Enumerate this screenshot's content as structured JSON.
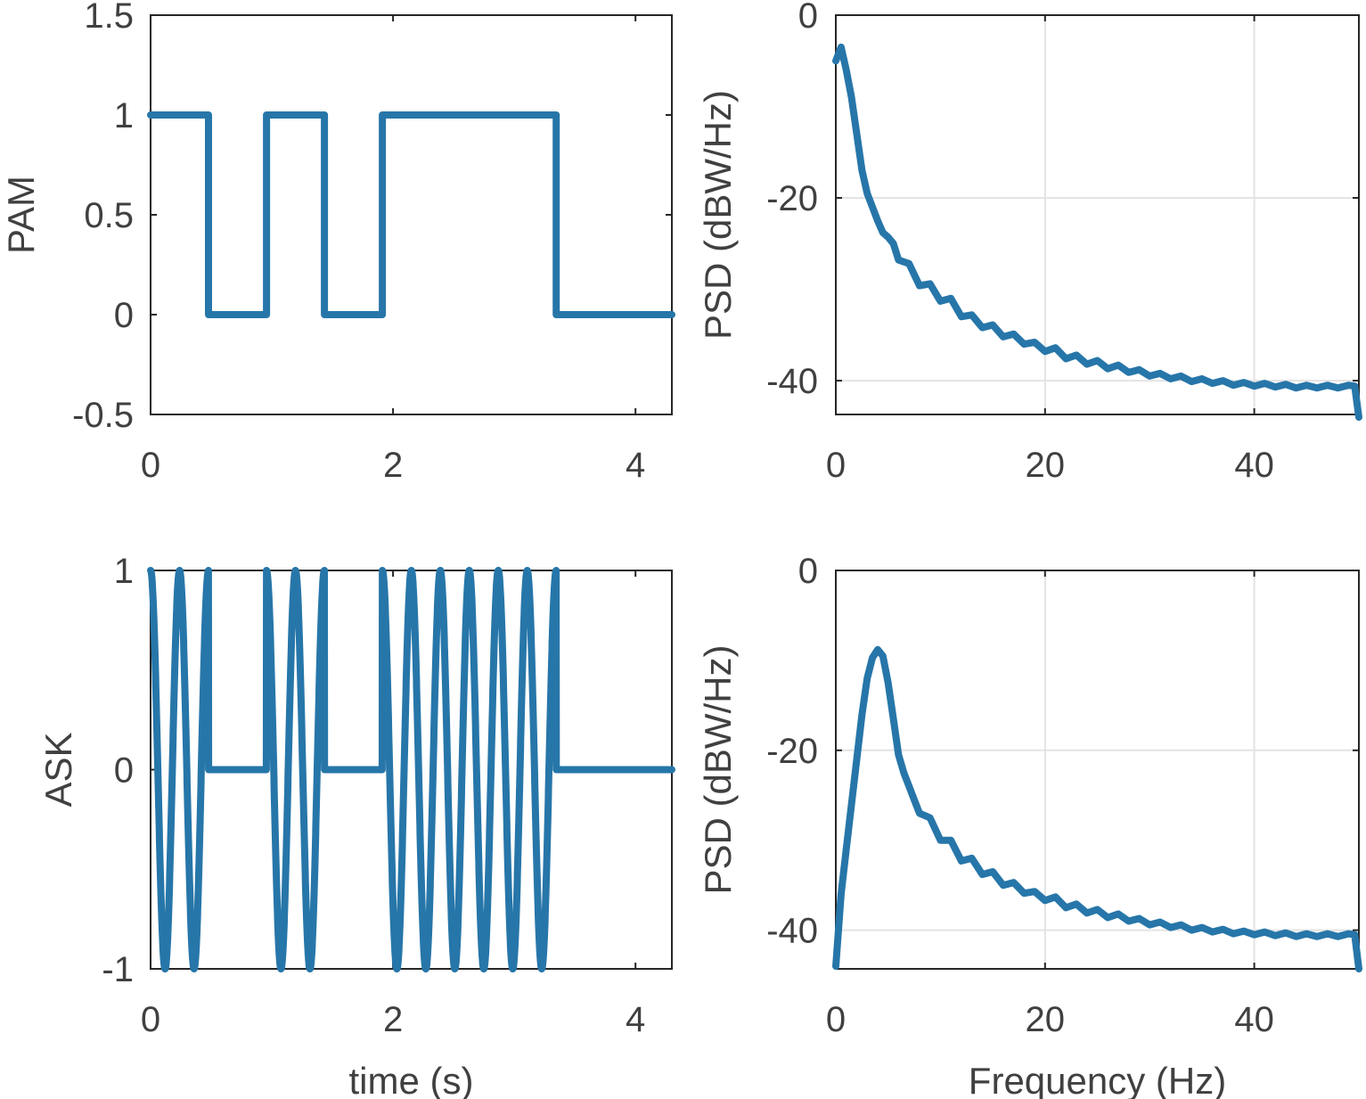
{
  "chart_data": [
    {
      "id": "pam",
      "type": "line",
      "title": "",
      "xlabel": "",
      "ylabel": "PAM",
      "xlim": [
        0,
        4.3
      ],
      "ylim": [
        -0.5,
        1.5
      ],
      "xticks": [
        0,
        2,
        4
      ],
      "xtick_labels": [
        "0",
        "2",
        "4"
      ],
      "yticks": [
        -0.5,
        0,
        0.5,
        1,
        1.5
      ],
      "ytick_labels": [
        "-0.5",
        "0",
        "0.5",
        "1",
        "1.5"
      ],
      "grid": false,
      "bits": [
        1,
        0,
        1,
        0,
        1,
        1,
        1,
        0,
        0
      ],
      "symbol_duration": 0.478,
      "color": "#2776a9"
    },
    {
      "id": "pam-psd",
      "type": "line",
      "xlabel": "",
      "ylabel": "PSD (dBW/Hz)",
      "xlim": [
        0,
        50
      ],
      "ylim": [
        -43.7,
        0
      ],
      "xticks": [
        0,
        20,
        40
      ],
      "xtick_labels": [
        "0",
        "20",
        "40"
      ],
      "yticks": [
        -40,
        -20,
        0
      ],
      "ytick_labels": [
        "-40",
        "-20",
        "0"
      ],
      "grid": true,
      "x": [
        0,
        0.5,
        1,
        1.5,
        2,
        2.5,
        3,
        3.5,
        4,
        4.5,
        5,
        5.5,
        6,
        7,
        8,
        9,
        10,
        11,
        12,
        13,
        14,
        15,
        16,
        17,
        18,
        19,
        20,
        21,
        22,
        23,
        24,
        25,
        26,
        27,
        28,
        29,
        30,
        31,
        32,
        33,
        34,
        35,
        36,
        37,
        38,
        39,
        40,
        41,
        42,
        43,
        44,
        45,
        46,
        47,
        48,
        49,
        49.6,
        50
      ],
      "y": [
        -5,
        -3.5,
        -6,
        -9,
        -13,
        -17,
        -19.5,
        -21,
        -22.5,
        -23.8,
        -24.3,
        -25,
        -26.8,
        -27.2,
        -29.6,
        -29.4,
        -31.3,
        -31,
        -33,
        -32.8,
        -34.2,
        -33.9,
        -35.2,
        -34.9,
        -36,
        -35.8,
        -36.8,
        -36.4,
        -37.6,
        -37.2,
        -38.2,
        -37.8,
        -38.7,
        -38.3,
        -39.1,
        -38.8,
        -39.5,
        -39.2,
        -39.8,
        -39.5,
        -40.1,
        -39.8,
        -40.3,
        -40,
        -40.5,
        -40.2,
        -40.6,
        -40.3,
        -40.7,
        -40.4,
        -40.8,
        -40.5,
        -40.8,
        -40.5,
        -40.8,
        -40.5,
        -40.6,
        -44
      ],
      "color": "#2776a9"
    },
    {
      "id": "ask",
      "type": "line",
      "xlabel": "time (s)",
      "ylabel": "ASK",
      "xlim": [
        0,
        4.3
      ],
      "ylim": [
        -1,
        1
      ],
      "xticks": [
        0,
        2,
        4
      ],
      "xtick_labels": [
        "0",
        "2",
        "4"
      ],
      "yticks": [
        -1,
        0,
        1
      ],
      "ytick_labels": [
        "-1",
        "0",
        "1"
      ],
      "grid": false,
      "bits": [
        1,
        0,
        1,
        0,
        1,
        1,
        1,
        0,
        0
      ],
      "symbol_duration": 0.478,
      "carrier_cycles_per_symbol": 2,
      "color": "#2776a9"
    },
    {
      "id": "ask-psd",
      "type": "line",
      "xlabel": "Frequency (Hz)",
      "ylabel": "PSD (dBW/Hz)",
      "xlim": [
        0,
        50
      ],
      "ylim": [
        -44.3,
        0
      ],
      "xticks": [
        0,
        20,
        40
      ],
      "xtick_labels": [
        "0",
        "20",
        "40"
      ],
      "yticks": [
        -40,
        -20,
        0
      ],
      "ytick_labels": [
        "-40",
        "-20",
        "0"
      ],
      "grid": true,
      "x": [
        0,
        0.5,
        1,
        1.5,
        2,
        2.5,
        3,
        3.5,
        4,
        4.5,
        5,
        5.5,
        6,
        6.5,
        7,
        7.5,
        8,
        9,
        10,
        11,
        12,
        13,
        14,
        15,
        16,
        17,
        18,
        19,
        20,
        21,
        22,
        23,
        24,
        25,
        26,
        27,
        28,
        29,
        30,
        31,
        32,
        33,
        34,
        35,
        36,
        37,
        38,
        39,
        40,
        41,
        42,
        43,
        44,
        45,
        46,
        47,
        48,
        49,
        49.6,
        50
      ],
      "y": [
        -44,
        -36,
        -31,
        -26,
        -21,
        -16,
        -12,
        -9.7,
        -8.8,
        -9.5,
        -12.5,
        -16.5,
        -20.5,
        -22.5,
        -24,
        -25.5,
        -27,
        -27.5,
        -30,
        -30,
        -32.3,
        -32,
        -33.8,
        -33.5,
        -35,
        -34.7,
        -35.9,
        -35.7,
        -36.7,
        -36.3,
        -37.5,
        -37.1,
        -38.1,
        -37.7,
        -38.6,
        -38.2,
        -39,
        -38.7,
        -39.4,
        -39.1,
        -39.7,
        -39.4,
        -40,
        -39.7,
        -40.2,
        -39.9,
        -40.4,
        -40.1,
        -40.5,
        -40.2,
        -40.6,
        -40.3,
        -40.7,
        -40.4,
        -40.7,
        -40.4,
        -40.7,
        -40.4,
        -40.5,
        -44.3
      ],
      "color": "#2776a9"
    }
  ]
}
